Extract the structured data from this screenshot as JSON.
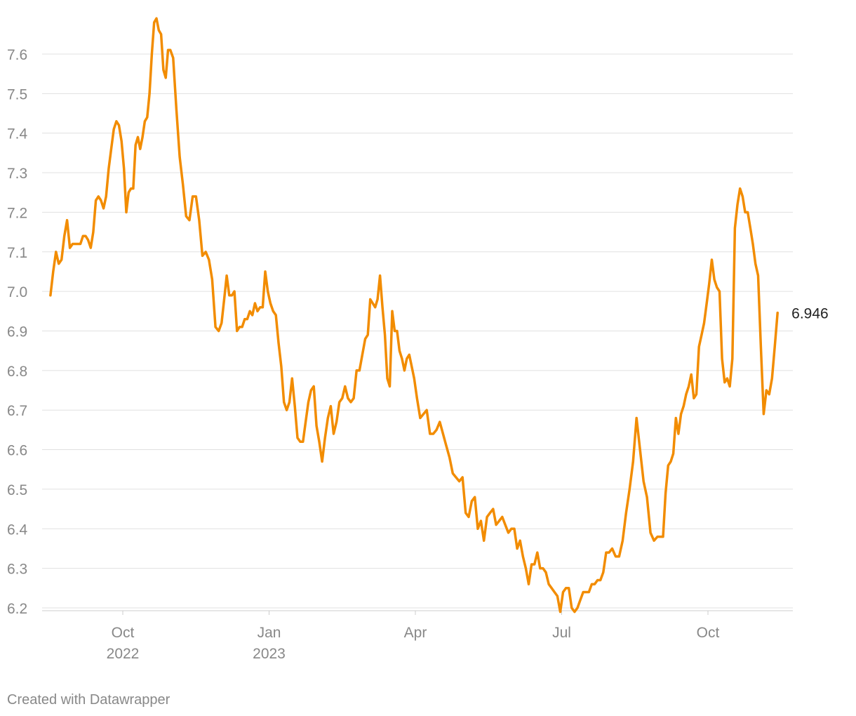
{
  "chart_data": {
    "type": "line",
    "x": [
      "2022-08",
      "2022-08",
      "2022-08",
      "2022-08",
      "2022-08",
      "2022-08",
      "2022-08",
      "2022-08",
      "2022-08",
      "2022-09",
      "2022-09",
      "2022-09",
      "2022-09",
      "2022-09",
      "2022-09",
      "2022-09",
      "2022-09",
      "2022-09",
      "2022-09",
      "2022-09",
      "2022-09",
      "2022-09",
      "2022-09",
      "2022-09",
      "2022-09",
      "2022-09",
      "2022-09",
      "2022-09",
      "2022-10",
      "2022-10",
      "2022-10",
      "2022-10",
      "2022-10",
      "2022-10",
      "2022-10",
      "2022-10",
      "2022-10",
      "2022-10",
      "2022-10",
      "2022-10",
      "2022-10",
      "2022-10",
      "2022-10",
      "2022-10",
      "2022-10",
      "2022-10",
      "2022-10",
      "2022-10",
      "2022-10",
      "2022-11",
      "2022-11",
      "2022-11",
      "2022-11",
      "2022-11",
      "2022-11",
      "2022-11",
      "2022-11",
      "2022-11",
      "2022-11",
      "2022-11",
      "2022-11",
      "2022-11",
      "2022-11",
      "2022-11",
      "2022-12",
      "2022-12",
      "2022-12",
      "2022-12",
      "2022-12",
      "2022-12",
      "2022-12",
      "2022-12",
      "2022-12",
      "2022-12",
      "2022-12",
      "2022-12",
      "2022-12",
      "2022-12",
      "2022-12",
      "2022-12",
      "2022-12",
      "2022-12",
      "2022-12",
      "2023-01",
      "2023-01",
      "2023-01",
      "2023-01",
      "2023-01",
      "2023-01",
      "2023-01",
      "2023-01",
      "2023-01",
      "2023-01",
      "2023-01",
      "2023-01",
      "2023-01",
      "2023-01",
      "2023-01",
      "2023-01",
      "2023-01",
      "2023-01",
      "2023-02",
      "2023-02",
      "2023-02",
      "2023-02",
      "2023-02",
      "2023-02",
      "2023-02",
      "2023-02",
      "2023-02",
      "2023-02",
      "2023-02",
      "2023-02",
      "2023-02",
      "2023-02",
      "2023-02",
      "2023-02",
      "2023-02",
      "2023-03",
      "2023-03",
      "2023-03",
      "2023-03",
      "2023-03",
      "2023-03",
      "2023-03",
      "2023-03",
      "2023-03",
      "2023-03",
      "2023-03",
      "2023-03",
      "2023-03",
      "2023-03",
      "2023-03",
      "2023-03",
      "2023-03",
      "2023-03",
      "2023-03",
      "2023-03",
      "2023-04",
      "2023-04",
      "2023-04",
      "2023-04",
      "2023-04",
      "2023-04",
      "2023-04",
      "2023-04",
      "2023-04",
      "2023-04",
      "2023-04",
      "2023-04",
      "2023-04",
      "2023-04",
      "2023-04",
      "2023-05",
      "2023-05",
      "2023-05",
      "2023-05",
      "2023-05",
      "2023-05",
      "2023-05",
      "2023-05",
      "2023-05",
      "2023-05",
      "2023-05",
      "2023-05",
      "2023-05",
      "2023-05",
      "2023-05",
      "2023-05",
      "2023-06",
      "2023-06",
      "2023-06",
      "2023-06",
      "2023-06",
      "2023-06",
      "2023-06",
      "2023-06",
      "2023-06",
      "2023-06",
      "2023-06",
      "2023-06",
      "2023-06",
      "2023-06",
      "2023-06",
      "2023-06",
      "2023-06",
      "2023-07",
      "2023-07",
      "2023-07",
      "2023-07",
      "2023-07",
      "2023-07",
      "2023-07",
      "2023-07",
      "2023-07",
      "2023-07",
      "2023-07",
      "2023-07",
      "2023-07",
      "2023-07",
      "2023-07",
      "2023-07",
      "2023-07",
      "2023-08",
      "2023-08",
      "2023-08",
      "2023-08",
      "2023-08",
      "2023-08",
      "2023-08",
      "2023-08",
      "2023-08",
      "2023-08",
      "2023-08",
      "2023-08",
      "2023-08",
      "2023-08",
      "2023-09",
      "2023-09",
      "2023-09",
      "2023-09",
      "2023-09",
      "2023-09",
      "2023-09",
      "2023-09",
      "2023-09",
      "2023-09",
      "2023-09",
      "2023-09",
      "2023-09",
      "2023-09",
      "2023-09",
      "2023-09",
      "2023-09",
      "2023-09",
      "2023-09",
      "2023-10",
      "2023-10",
      "2023-10",
      "2023-10",
      "2023-10",
      "2023-10",
      "2023-10",
      "2023-10",
      "2023-10",
      "2023-10",
      "2023-10",
      "2023-10",
      "2023-10",
      "2023-10",
      "2023-10",
      "2023-10",
      "2023-10",
      "2023-10",
      "2023-10",
      "2023-11",
      "2023-11",
      "2023-11",
      "2023-11",
      "2023-11",
      "2023-11",
      "2023-11",
      "2023-11"
    ],
    "series": [
      {
        "color": "#f28c00",
        "values": [
          6.99,
          7.05,
          7.1,
          7.07,
          7.08,
          7.14,
          7.18,
          7.11,
          7.12,
          7.12,
          7.12,
          7.12,
          7.14,
          7.14,
          7.13,
          7.11,
          7.15,
          7.23,
          7.24,
          7.23,
          7.21,
          7.24,
          7.31,
          7.36,
          7.41,
          7.43,
          7.42,
          7.38,
          7.31,
          7.2,
          7.25,
          7.26,
          7.26,
          7.37,
          7.39,
          7.36,
          7.39,
          7.43,
          7.44,
          7.5,
          7.6,
          7.68,
          7.69,
          7.66,
          7.65,
          7.56,
          7.54,
          7.61,
          7.61,
          7.59,
          7.46,
          7.34,
          7.27,
          7.19,
          7.18,
          7.24,
          7.24,
          7.18,
          7.09,
          7.1,
          7.08,
          7.03,
          6.91,
          6.9,
          6.92,
          6.98,
          7.04,
          6.99,
          6.99,
          7.0,
          6.9,
          6.91,
          6.91,
          6.93,
          6.93,
          6.95,
          6.94,
          6.97,
          6.95,
          6.96,
          6.96,
          7.05,
          7.0,
          6.97,
          6.95,
          6.94,
          6.87,
          6.81,
          6.72,
          6.7,
          6.72,
          6.78,
          6.71,
          6.63,
          6.62,
          6.62,
          6.67,
          6.72,
          6.75,
          6.76,
          6.66,
          6.62,
          6.57,
          6.63,
          6.68,
          6.71,
          6.64,
          6.67,
          6.72,
          6.73,
          6.76,
          6.73,
          6.72,
          6.73,
          6.8,
          6.8,
          6.84,
          6.88,
          6.89,
          6.98,
          6.97,
          6.96,
          6.98,
          7.04,
          6.96,
          6.89,
          6.78,
          6.76,
          6.95,
          6.9,
          6.9,
          6.85,
          6.83,
          6.8,
          6.83,
          6.84,
          6.81,
          6.78,
          6.73,
          6.68,
          6.69,
          6.7,
          6.64,
          6.64,
          6.65,
          6.67,
          6.64,
          6.61,
          6.58,
          6.54,
          6.53,
          6.52,
          6.53,
          6.44,
          6.43,
          6.47,
          6.48,
          6.4,
          6.42,
          6.37,
          6.43,
          6.44,
          6.45,
          6.41,
          6.42,
          6.43,
          6.41,
          6.39,
          6.4,
          6.4,
          6.35,
          6.37,
          6.33,
          6.3,
          6.26,
          6.31,
          6.31,
          6.34,
          6.3,
          6.3,
          6.29,
          6.26,
          6.25,
          6.24,
          6.23,
          6.19,
          6.24,
          6.25,
          6.25,
          6.2,
          6.19,
          6.2,
          6.22,
          6.24,
          6.24,
          6.24,
          6.26,
          6.26,
          6.27,
          6.27,
          6.29,
          6.34,
          6.34,
          6.35,
          6.33,
          6.33,
          6.37,
          6.44,
          6.5,
          6.57,
          6.68,
          6.6,
          6.52,
          6.48,
          6.39,
          6.37,
          6.38,
          6.38,
          6.38,
          6.49,
          6.56,
          6.57,
          6.59,
          6.68,
          6.64,
          6.69,
          6.71,
          6.74,
          6.76,
          6.79,
          6.73,
          6.74,
          6.86,
          6.89,
          6.92,
          6.97,
          7.02,
          7.08,
          7.03,
          7.01,
          7.0,
          6.83,
          6.77,
          6.78,
          6.76,
          6.83,
          7.16,
          7.22,
          7.26,
          7.24,
          7.2,
          7.2,
          7.16,
          7.12,
          7.07,
          7.04,
          6.86,
          6.69,
          6.75,
          6.74,
          6.78,
          6.86,
          6.946
        ]
      }
    ],
    "xlim": [
      "2022-08",
      "2023-12"
    ],
    "xticks": [
      {
        "value": "2022-10",
        "label": "Oct 2022"
      },
      {
        "value": "2023-01",
        "label": "Jan 2023"
      },
      {
        "value": "2023-04",
        "label": "Apr"
      },
      {
        "value": "2023-07",
        "label": "Jul"
      },
      {
        "value": "2023-10",
        "label": "Oct"
      }
    ],
    "ylim": [
      6.2,
      7.7
    ],
    "yticks": [
      6.2,
      6.3,
      6.4,
      6.5,
      6.6,
      6.7,
      6.8,
      6.9,
      {
        "value": 7,
        "label": "7.0"
      },
      7.1,
      7.2,
      7.3,
      7.4,
      7.5,
      7.6
    ],
    "grid": true,
    "credit": "Created with Datawrapper"
  }
}
